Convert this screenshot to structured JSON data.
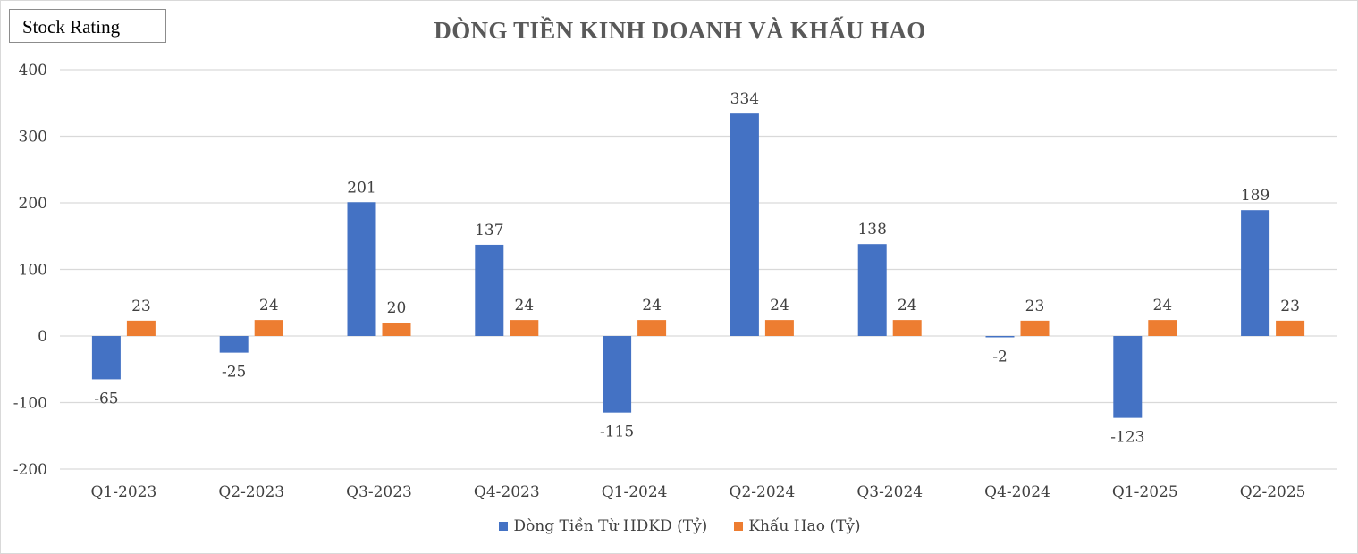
{
  "badge_label": "Stock Rating",
  "chart_data": {
    "type": "bar",
    "title": "DÒNG TIỀN KINH DOANH VÀ KHẤU HAO",
    "xlabel": "",
    "ylabel": "",
    "ylim": [
      -200,
      400
    ],
    "yticks": [
      400,
      300,
      200,
      100,
      0,
      -100,
      -200
    ],
    "grid": true,
    "legend_position": "bottom",
    "categories": [
      "Q1-2023",
      "Q2-2023",
      "Q3-2023",
      "Q4-2023",
      "Q1-2024",
      "Q2-2024",
      "Q3-2024",
      "Q4-2024",
      "Q1-2025",
      "Q2-2025"
    ],
    "series": [
      {
        "name": "Dòng Tiền Từ HĐKD (Tỷ)",
        "color": "#4472c4",
        "values": [
          -65,
          -25,
          201,
          137,
          -115,
          334,
          138,
          -2,
          -123,
          189
        ]
      },
      {
        "name": "Khấu Hao (Tỷ)",
        "color": "#ed7d31",
        "values": [
          23,
          24,
          20,
          24,
          24,
          24,
          24,
          23,
          24,
          23
        ]
      }
    ]
  }
}
